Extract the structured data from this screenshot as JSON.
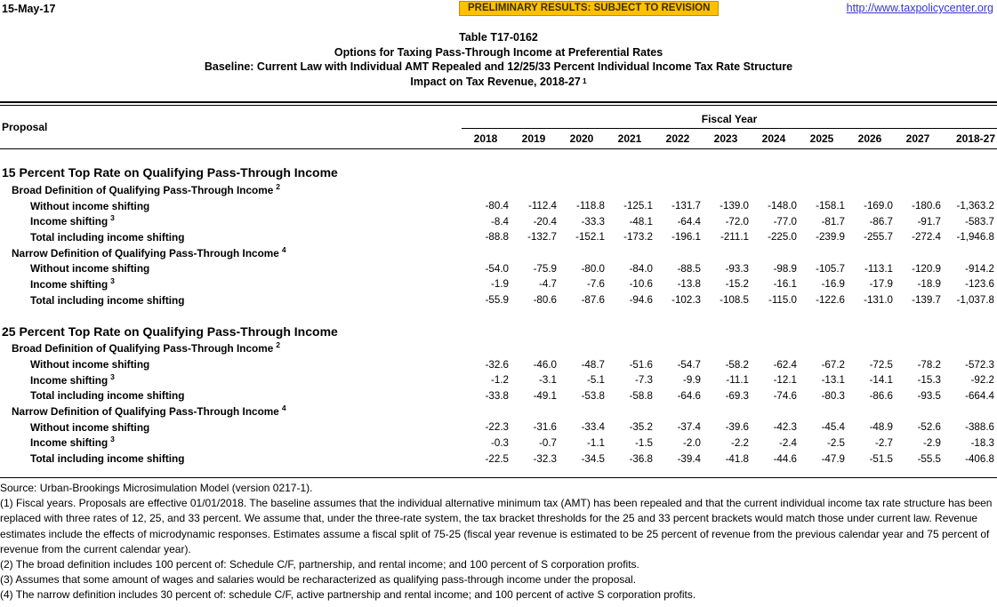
{
  "header": {
    "date": "15-May-17",
    "banner": "PRELIMINARY RESULTS: SUBJECT TO REVISION",
    "link": "http://www.taxpolicycenter.org"
  },
  "title": {
    "line1": "Table T17-0162",
    "line2": "Options for Taxing Pass-Through Income at Preferential Rates",
    "line3": "Baseline: Current Law with Individual AMT Repealed and 12/25/33 Percent Individual Income Tax Rate Structure",
    "line4": "Impact on Tax Revenue, 2018-27",
    "line4_sup": "1"
  },
  "table": {
    "row_header": "Proposal",
    "col_group": "Fiscal Year",
    "columns": [
      "2018",
      "2019",
      "2020",
      "2021",
      "2022",
      "2023",
      "2024",
      "2025",
      "2026",
      "2027",
      "2018-27"
    ],
    "sections": [
      {
        "heading": "15 Percent Top Rate on Qualifying Pass-Through Income",
        "groups": [
          {
            "label": "Broad Definition of Qualifying Pass-Through Income",
            "sup": "2",
            "rows": [
              {
                "label": "Without income shifting",
                "sup": "",
                "values": [
                  "-80.4",
                  "-112.4",
                  "-118.8",
                  "-125.1",
                  "-131.7",
                  "-139.0",
                  "-148.0",
                  "-158.1",
                  "-169.0",
                  "-180.6",
                  "-1,363.2"
                ]
              },
              {
                "label": "Income shifting",
                "sup": "3",
                "values": [
                  "-8.4",
                  "-20.4",
                  "-33.3",
                  "-48.1",
                  "-64.4",
                  "-72.0",
                  "-77.0",
                  "-81.7",
                  "-86.7",
                  "-91.7",
                  "-583.7"
                ]
              },
              {
                "label": "Total including income shifting",
                "sup": "",
                "values": [
                  "-88.8",
                  "-132.7",
                  "-152.1",
                  "-173.2",
                  "-196.1",
                  "-211.1",
                  "-225.0",
                  "-239.9",
                  "-255.7",
                  "-272.4",
                  "-1,946.8"
                ]
              }
            ]
          },
          {
            "label": "Narrow Definition of Qualifying Pass-Through Income",
            "sup": "4",
            "rows": [
              {
                "label": "Without income shifting",
                "sup": "",
                "values": [
                  "-54.0",
                  "-75.9",
                  "-80.0",
                  "-84.0",
                  "-88.5",
                  "-93.3",
                  "-98.9",
                  "-105.7",
                  "-113.1",
                  "-120.9",
                  "-914.2"
                ]
              },
              {
                "label": "Income shifting",
                "sup": "3",
                "values": [
                  "-1.9",
                  "-4.7",
                  "-7.6",
                  "-10.6",
                  "-13.8",
                  "-15.2",
                  "-16.1",
                  "-16.9",
                  "-17.9",
                  "-18.9",
                  "-123.6"
                ]
              },
              {
                "label": "Total including income shifting",
                "sup": "",
                "values": [
                  "-55.9",
                  "-80.6",
                  "-87.6",
                  "-94.6",
                  "-102.3",
                  "-108.5",
                  "-115.0",
                  "-122.6",
                  "-131.0",
                  "-139.7",
                  "-1,037.8"
                ]
              }
            ]
          }
        ]
      },
      {
        "heading": "25 Percent Top Rate on Qualifying Pass-Through Income",
        "groups": [
          {
            "label": "Broad Definition of Qualifying Pass-Through Income",
            "sup": "2",
            "rows": [
              {
                "label": "Without income shifting",
                "sup": "",
                "values": [
                  "-32.6",
                  "-46.0",
                  "-48.7",
                  "-51.6",
                  "-54.7",
                  "-58.2",
                  "-62.4",
                  "-67.2",
                  "-72.5",
                  "-78.2",
                  "-572.3"
                ]
              },
              {
                "label": "Income shifting",
                "sup": "3",
                "values": [
                  "-1.2",
                  "-3.1",
                  "-5.1",
                  "-7.3",
                  "-9.9",
                  "-11.1",
                  "-12.1",
                  "-13.1",
                  "-14.1",
                  "-15.3",
                  "-92.2"
                ]
              },
              {
                "label": "Total including income shifting",
                "sup": "",
                "values": [
                  "-33.8",
                  "-49.1",
                  "-53.8",
                  "-58.8",
                  "-64.6",
                  "-69.3",
                  "-74.6",
                  "-80.3",
                  "-86.6",
                  "-93.5",
                  "-664.4"
                ]
              }
            ]
          },
          {
            "label": "Narrow Definition of Qualifying Pass-Through Income",
            "sup": "4",
            "rows": [
              {
                "label": "Without income shifting",
                "sup": "",
                "values": [
                  "-22.3",
                  "-31.6",
                  "-33.4",
                  "-35.2",
                  "-37.4",
                  "-39.6",
                  "-42.3",
                  "-45.4",
                  "-48.9",
                  "-52.6",
                  "-388.6"
                ]
              },
              {
                "label": "Income shifting",
                "sup": "3",
                "values": [
                  "-0.3",
                  "-0.7",
                  "-1.1",
                  "-1.5",
                  "-2.0",
                  "-2.2",
                  "-2.4",
                  "-2.5",
                  "-2.7",
                  "-2.9",
                  "-18.3"
                ]
              },
              {
                "label": "Total including income shifting",
                "sup": "",
                "values": [
                  "-22.5",
                  "-32.3",
                  "-34.5",
                  "-36.8",
                  "-39.4",
                  "-41.8",
                  "-44.6",
                  "-47.9",
                  "-51.5",
                  "-55.5",
                  "-406.8"
                ]
              }
            ]
          }
        ]
      }
    ]
  },
  "footer": {
    "source": "Source: Urban-Brookings Microsimulation Model (version 0217-1).",
    "notes": [
      "(1) Fiscal years. Proposals are effective 01/01/2018. The baseline assumes that the individual alternative minimum tax (AMT) has been repealed and that the current individual income tax rate structure has been replaced with three rates of 12, 25, and 33 percent. We assume that, under the three-rate system, the tax bracket thresholds for the 25 and 33 percent brackets would match those under current law. Revenue estimates include the effects of microdynamic responses. Estimates assume a fiscal split of 75-25 (fiscal year revenue is estimated to be 25 percent of revenue from the previous calendar year and 75 percent of revenue from the current calendar year).",
      "(2) The broad definition includes 100 percent of: Schedule C/F, partnership, and rental income; and 100 percent of S corporation profits.",
      "(3) Assumes that some amount of wages and salaries would be recharacterized as qualifying pass-through income under the proposal.",
      "(4) The narrow definition includes 30 percent of: schedule C/F, active partnership and rental income; and 100 percent of active S corporation profits."
    ]
  },
  "colors": {
    "banner_bg": "#FFC000",
    "banner_border": "#BF9000",
    "link_blue": "#3535CC"
  }
}
